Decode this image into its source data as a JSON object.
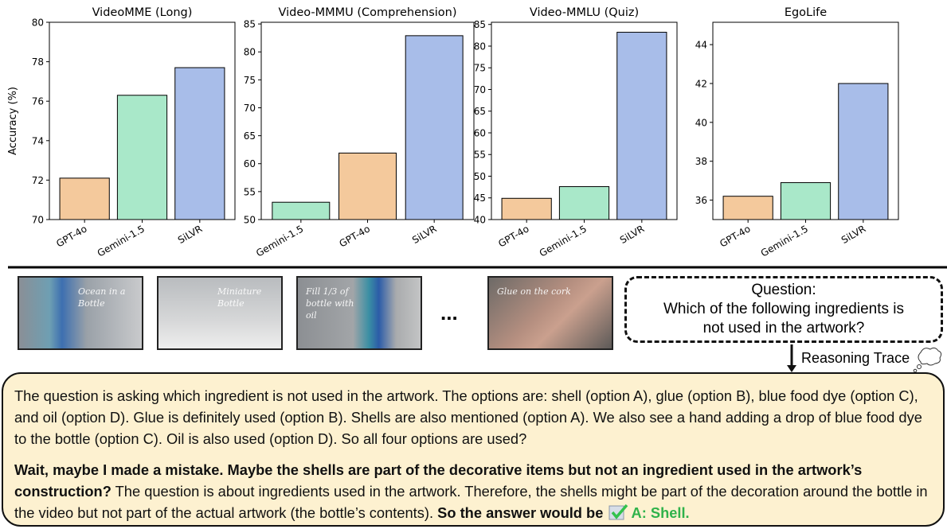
{
  "chart_data": [
    {
      "type": "bar",
      "title": "VideoMME (Long)",
      "ylabel": "Accuracy (%)",
      "categories": [
        "GPT-4o",
        "Gemini-1.5",
        "SiLVR"
      ],
      "values": [
        72.1,
        76.3,
        77.7
      ],
      "colors": [
        "#f4c99c",
        "#a9e8c9",
        "#a8bde9"
      ],
      "ylim": [
        70,
        80
      ],
      "yticks": [
        70,
        72,
        74,
        76,
        78,
        80
      ]
    },
    {
      "type": "bar",
      "title": "Video-MMMU (Comprehension)",
      "categories": [
        "Gemini-1.5",
        "GPT-4o",
        "SiLVR"
      ],
      "values": [
        53.1,
        61.9,
        82.9
      ],
      "colors": [
        "#a9e8c9",
        "#f4c99c",
        "#a8bde9"
      ],
      "ylim": [
        50,
        85.3
      ],
      "yticks": [
        50,
        55,
        60,
        65,
        70,
        75,
        80,
        85
      ]
    },
    {
      "type": "bar",
      "title": "Video-MMLU (Quiz)",
      "categories": [
        "GPT-4o",
        "Gemini-1.5",
        "SiLVR"
      ],
      "values": [
        44.9,
        47.6,
        83.2
      ],
      "colors": [
        "#f4c99c",
        "#a9e8c9",
        "#a8bde9"
      ],
      "ylim": [
        40,
        85.5
      ],
      "yticks": [
        40,
        45,
        50,
        55,
        60,
        65,
        70,
        75,
        80,
        85
      ]
    },
    {
      "type": "bar",
      "title": "EgoLife",
      "categories": [
        "GPT-4o",
        "Gemini-1.5",
        "SiLVR"
      ],
      "values": [
        36.2,
        36.9,
        42.0
      ],
      "colors": [
        "#f4c99c",
        "#a9e8c9",
        "#a8bde9"
      ],
      "ylim": [
        35,
        45.15
      ],
      "yticks": [
        36,
        38,
        40,
        42,
        44
      ]
    }
  ],
  "frames": [
    "Ocean in a Bottle",
    "Miniature Bottle",
    "Fill 1/3 of bottle with oil",
    "Glue on the cork"
  ],
  "ellipsis": "...",
  "question": {
    "label": "Question:",
    "text": "Which of the following ingredients is not used in the artwork?"
  },
  "reasoning": {
    "label": "Reasoning Trace",
    "paragraph1": "The question is asking which ingredient is not used in the artwork. The options are: shell (option A), glue (option B), blue food dye (option C), and oil (option D). Glue is definitely used (option B). Shells are also mentioned (option A). We also see a hand adding a drop of blue food dye to the bottle (option C). Oil is also used (option D). So all four options are used?",
    "paragraph2": {
      "bold_lead": "Wait, maybe I made a mistake. Maybe the shells are part of the decorative items but not an ingredient used in the artwork’s construction?",
      "text": "The question is about ingredients used in the artwork. Therefore, the shells might be part of the decoration around the bottle in the video but not part of the actual artwork (the bottle’s contents).",
      "bold_tail": "So the answer would be",
      "answer": "A: Shell."
    }
  }
}
